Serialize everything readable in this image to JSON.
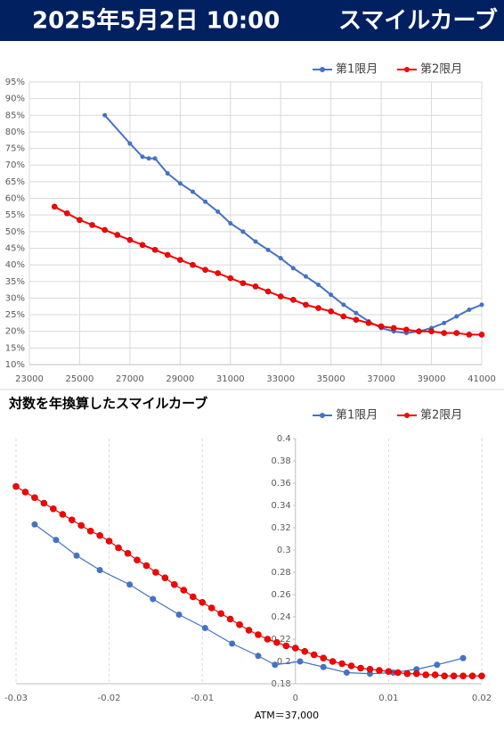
{
  "header": {
    "datetime": "2025年5月2日 10:00",
    "title": "スマイルカーブ"
  },
  "chart_data": [
    {
      "type": "line",
      "legend": "top-right",
      "xgrid": true,
      "ygrid": true,
      "xlim": [
        23000,
        41000
      ],
      "xticks": [
        23000,
        25000,
        27000,
        29000,
        31000,
        33000,
        35000,
        37000,
        39000,
        41000
      ],
      "ylim": [
        10,
        95
      ],
      "yticks": [
        {
          "value": 10,
          "label": "10%"
        },
        {
          "value": 15,
          "label": "15%"
        },
        {
          "value": 20,
          "label": "20%"
        },
        {
          "value": 25,
          "label": "25%"
        },
        {
          "value": 30,
          "label": "30%"
        },
        {
          "value": 35,
          "label": "35%"
        },
        {
          "value": 40,
          "label": "40%"
        },
        {
          "value": 45,
          "label": "45%"
        },
        {
          "value": 50,
          "label": "50%"
        },
        {
          "value": 55,
          "label": "55%"
        },
        {
          "value": 60,
          "label": "60%"
        },
        {
          "value": 65,
          "label": "65%"
        },
        {
          "value": 70,
          "label": "70%"
        },
        {
          "value": 75,
          "label": "75%"
        },
        {
          "value": 80,
          "label": "80%"
        },
        {
          "value": 85,
          "label": "85%"
        },
        {
          "value": 90,
          "label": "90%"
        },
        {
          "value": 95,
          "label": "95%"
        }
      ],
      "series": [
        {
          "name": "第1限月",
          "color": "#4472c4",
          "x": [
            26000,
            27000,
            27500,
            27750,
            28000,
            28500,
            29000,
            29500,
            30000,
            30500,
            31000,
            31500,
            32000,
            32500,
            33000,
            33500,
            34000,
            34500,
            35000,
            35500,
            36000,
            36500,
            37000,
            37500,
            38000,
            38500,
            39000,
            39500,
            40000,
            40500,
            41000
          ],
          "values": [
            85,
            76.5,
            72.5,
            72,
            72,
            67.5,
            64.5,
            62,
            59,
            56,
            52.5,
            50,
            47,
            44.5,
            42,
            39,
            36.5,
            34,
            31,
            28,
            25.5,
            23,
            21,
            20,
            19.5,
            20,
            21,
            22.5,
            24.5,
            26.5,
            28
          ]
        },
        {
          "name": "第2限月",
          "color": "#ff0000",
          "x": [
            24000,
            24500,
            25000,
            25500,
            26000,
            26500,
            27000,
            27500,
            28000,
            28500,
            29000,
            29500,
            30000,
            30500,
            31000,
            31500,
            32000,
            32500,
            33000,
            33500,
            34000,
            34500,
            35000,
            35500,
            36000,
            36500,
            37000,
            37500,
            38000,
            38500,
            39000,
            39500,
            40000,
            40500,
            41000
          ],
          "values": [
            57.5,
            55.5,
            53.5,
            52,
            50.5,
            49,
            47.5,
            46,
            44.5,
            43,
            41.5,
            40,
            38.5,
            37.5,
            36,
            34.5,
            33.5,
            32,
            30.5,
            29.5,
            28,
            27,
            26,
            24.5,
            23.5,
            22.5,
            21.5,
            21,
            20.5,
            20,
            20,
            19.5,
            19.5,
            19,
            19
          ]
        }
      ]
    },
    {
      "type": "line",
      "title": "対数を年換算したスマイルカーブ",
      "x_label": "ATM＝37,000",
      "legend": "top-right",
      "xgrid": true,
      "ygrid": false,
      "grid_style": "dashed",
      "y_axis_crosses": 0,
      "xlim": [
        -0.03,
        0.02
      ],
      "xticks": [
        -0.03,
        -0.02,
        -0.01,
        0,
        0.01,
        0.02
      ],
      "ylim": [
        0.18,
        0.4
      ],
      "yticks": [
        0.18,
        0.2,
        0.22,
        0.24,
        0.26,
        0.28,
        0.3,
        0.32,
        0.34,
        0.36,
        0.38,
        0.4
      ],
      "series": [
        {
          "name": "第1限月",
          "color": "#4472c4",
          "x": [
            -0.028,
            -0.0257,
            -0.0235,
            -0.021,
            -0.0178,
            -0.0153,
            -0.0125,
            -0.0097,
            -0.0068,
            -0.004,
            -0.0022,
            0.0005,
            0.003,
            0.0055,
            0.008,
            0.0105,
            0.013,
            0.0152,
            0.018
          ],
          "values": [
            0.323,
            0.309,
            0.295,
            0.282,
            0.269,
            0.256,
            0.242,
            0.23,
            0.216,
            0.205,
            0.197,
            0.2,
            0.195,
            0.19,
            0.189,
            0.19,
            0.193,
            0.197,
            0.203
          ]
        },
        {
          "name": "第2限月",
          "color": "#ff0000",
          "x": [
            -0.03,
            -0.029,
            -0.028,
            -0.027,
            -0.026,
            -0.025,
            -0.024,
            -0.023,
            -0.022,
            -0.021,
            -0.02,
            -0.019,
            -0.018,
            -0.017,
            -0.016,
            -0.015,
            -0.014,
            -0.013,
            -0.012,
            -0.011,
            -0.01,
            -0.009,
            -0.008,
            -0.007,
            -0.006,
            -0.005,
            -0.004,
            -0.003,
            -0.002,
            -0.001,
            0,
            0.001,
            0.002,
            0.003,
            0.004,
            0.005,
            0.006,
            0.007,
            0.008,
            0.009,
            0.01,
            0.011,
            0.012,
            0.013,
            0.014,
            0.015,
            0.016,
            0.017,
            0.018,
            0.019,
            0.02
          ],
          "values": [
            0.357,
            0.352,
            0.347,
            0.342,
            0.337,
            0.332,
            0.327,
            0.322,
            0.317,
            0.313,
            0.308,
            0.302,
            0.297,
            0.291,
            0.286,
            0.28,
            0.275,
            0.269,
            0.264,
            0.258,
            0.253,
            0.248,
            0.243,
            0.238,
            0.233,
            0.228,
            0.224,
            0.22,
            0.217,
            0.214,
            0.212,
            0.209,
            0.206,
            0.203,
            0.2,
            0.198,
            0.196,
            0.194,
            0.193,
            0.192,
            0.191,
            0.19,
            0.189,
            0.189,
            0.188,
            0.188,
            0.187,
            0.187,
            0.187,
            0.187,
            0.187
          ]
        }
      ]
    }
  ]
}
